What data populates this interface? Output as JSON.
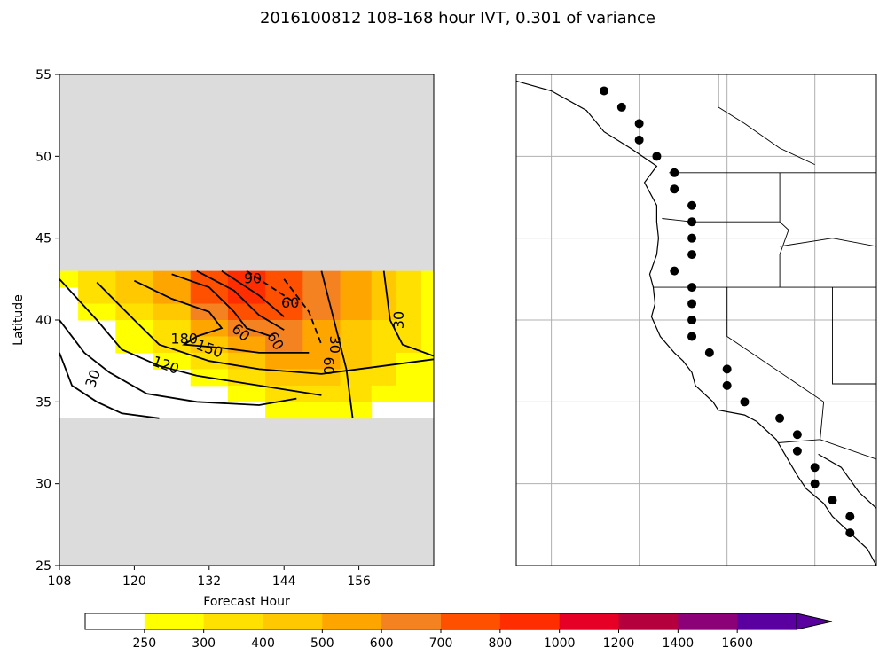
{
  "figure": {
    "title": "2016100812 108-168 hour IVT, 0.301 of variance"
  },
  "colors": {
    "missing_bg": "#dcdcdc",
    "contour": "#000000",
    "grid": "#b0b0b0",
    "levels": [
      "#ffff00",
      "#ffe000",
      "#ffc800",
      "#ffa500",
      "#f58220",
      "#ff5000",
      "#ff2d00",
      "#e60026",
      "#b4003c",
      "#8c0078",
      "#5a00a0"
    ]
  },
  "chart_data": [
    {
      "type": "contour",
      "xlabel": "Forecast Hour",
      "ylabel": "Latitude",
      "xlim": [
        108,
        168
      ],
      "ylim": [
        25,
        55
      ],
      "x_ticks": [
        "108",
        "120",
        "132",
        "144",
        "156"
      ],
      "y_ticks": [
        "25",
        "30",
        "35",
        "40",
        "45",
        "50",
        "55"
      ],
      "data_lat_range": [
        34,
        43
      ],
      "filled_ivt": [
        {
          "lat": 43.0,
          "values": [
            250,
            300,
            400,
            500,
            700,
            800,
            700,
            600,
            500,
            400,
            300,
            250
          ]
        },
        {
          "lat": 42.0,
          "values": [
            0,
            300,
            400,
            500,
            700,
            800,
            700,
            600,
            500,
            400,
            300,
            250
          ]
        },
        {
          "lat": 41.0,
          "values": [
            0,
            250,
            300,
            400,
            600,
            700,
            700,
            600,
            500,
            400,
            300,
            250
          ]
        },
        {
          "lat": 40.0,
          "values": [
            0,
            0,
            250,
            300,
            500,
            600,
            650,
            550,
            450,
            350,
            300,
            250
          ]
        },
        {
          "lat": 39.0,
          "values": [
            0,
            0,
            250,
            300,
            400,
            550,
            600,
            500,
            400,
            350,
            300,
            250
          ]
        },
        {
          "lat": 38.0,
          "values": [
            0,
            0,
            0,
            250,
            300,
            400,
            500,
            500,
            400,
            300,
            250,
            250
          ]
        },
        {
          "lat": 37.0,
          "values": [
            0,
            0,
            0,
            0,
            250,
            300,
            400,
            400,
            350,
            300,
            250,
            250
          ]
        },
        {
          "lat": 36.0,
          "values": [
            0,
            0,
            0,
            0,
            0,
            250,
            300,
            300,
            300,
            250,
            250,
            250
          ]
        },
        {
          "lat": 35.0,
          "values": [
            0,
            0,
            0,
            0,
            0,
            0,
            250,
            250,
            250,
            0,
            0,
            0
          ]
        },
        {
          "lat": 34.0,
          "values": [
            0,
            0,
            0,
            0,
            0,
            0,
            0,
            0,
            0,
            0,
            0,
            0
          ]
        }
      ],
      "filled_x": [
        108,
        114,
        120,
        126,
        132,
        138,
        144,
        150,
        156,
        160,
        164,
        168
      ],
      "contour_labels": [
        "30",
        "30",
        "30",
        "60",
        "60",
        "60",
        "60",
        "90",
        "120",
        "150",
        "180"
      ]
    },
    {
      "type": "scatter",
      "projection": "map",
      "description_region": "US West Coast",
      "lon_lines": [
        -130,
        -125,
        -120,
        -115
      ],
      "lat_lines": [
        50,
        45,
        40,
        35,
        30
      ],
      "points": [
        {
          "lon": -127.0,
          "lat": 54.0
        },
        {
          "lon": -126.0,
          "lat": 53.0
        },
        {
          "lon": -125.0,
          "lat": 52.0
        },
        {
          "lon": -125.0,
          "lat": 51.0
        },
        {
          "lon": -124.0,
          "lat": 50.0
        },
        {
          "lon": -123.0,
          "lat": 49.0
        },
        {
          "lon": -123.0,
          "lat": 48.0
        },
        {
          "lon": -122.0,
          "lat": 47.0
        },
        {
          "lon": -122.0,
          "lat": 46.0
        },
        {
          "lon": -122.0,
          "lat": 45.0
        },
        {
          "lon": -122.0,
          "lat": 44.0
        },
        {
          "lon": -123.0,
          "lat": 43.0
        },
        {
          "lon": -122.0,
          "lat": 42.0
        },
        {
          "lon": -122.0,
          "lat": 41.0
        },
        {
          "lon": -122.0,
          "lat": 40.0
        },
        {
          "lon": -122.0,
          "lat": 39.0
        },
        {
          "lon": -121.0,
          "lat": 38.0
        },
        {
          "lon": -120.0,
          "lat": 37.0
        },
        {
          "lon": -120.0,
          "lat": 36.0
        },
        {
          "lon": -119.0,
          "lat": 35.0
        },
        {
          "lon": -117.0,
          "lat": 34.0
        },
        {
          "lon": -116.0,
          "lat": 33.0
        },
        {
          "lon": -116.0,
          "lat": 32.0
        },
        {
          "lon": -115.0,
          "lat": 31.0
        },
        {
          "lon": -115.0,
          "lat": 30.0
        },
        {
          "lon": -114.0,
          "lat": 29.0
        },
        {
          "lon": -113.0,
          "lat": 28.0
        },
        {
          "lon": -113.0,
          "lat": 27.0
        },
        {
          "lon": -111.0,
          "lat": 26.0
        },
        {
          "lon": -111.0,
          "lat": 25.0
        }
      ]
    }
  ],
  "colorbar": {
    "tick_labels": [
      "250",
      "300",
      "400",
      "500",
      "600",
      "700",
      "800",
      "1000",
      "1200",
      "1400",
      "1600"
    ]
  }
}
